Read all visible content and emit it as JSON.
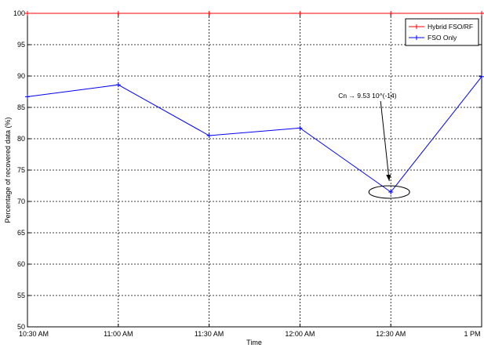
{
  "chart_data": {
    "type": "line",
    "categories": [
      "10:30 AM",
      "11:00 AM",
      "11:30 AM",
      "12:00 AM",
      "12:30 AM",
      "1 PM"
    ],
    "xlabel": "Time",
    "ylabel": "Percentage of recovered data (%)",
    "ylim": [
      50,
      100
    ],
    "yticks": [
      50,
      55,
      60,
      65,
      70,
      75,
      80,
      85,
      90,
      95,
      100
    ],
    "grid": true,
    "legend_position": "top-right",
    "series": [
      {
        "name": "Hybrid FSO/RF",
        "color": "#ff0000",
        "marker": "plus",
        "values": [
          100,
          100,
          100,
          100,
          100,
          100
        ]
      },
      {
        "name": "FSO Only",
        "color": "#0000ff",
        "marker": "plus",
        "values": [
          86.7,
          88.6,
          80.5,
          81.7,
          71.5,
          89.9
        ]
      }
    ],
    "annotation": {
      "text": "Cn → 9.53 10^(-14)",
      "series": "FSO Only",
      "category": "12:30 AM"
    }
  }
}
